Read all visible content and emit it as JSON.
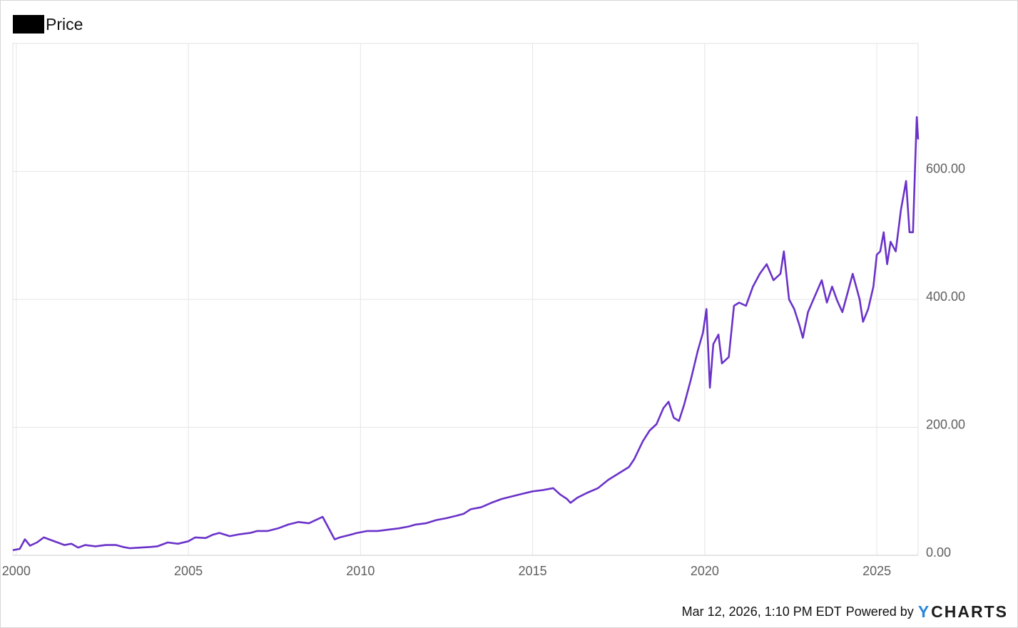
{
  "legend": {
    "label": "Price",
    "swatch_color": "#000000"
  },
  "footer": {
    "timestamp": "Mar 12, 2026, 1:10 PM EDT",
    "powered_by": "Powered by",
    "brand_mark": "Y",
    "brand_rest": "CHARTS",
    "brand_mark_color": "#2a86d8"
  },
  "chart_data": {
    "type": "line",
    "title": "",
    "xlabel": "",
    "ylabel": "",
    "x_ticks": [
      2000,
      2005,
      2010,
      2015,
      2020,
      2025
    ],
    "y_ticks": [
      0,
      200,
      400,
      600
    ],
    "y_tick_labels": [
      "0.00",
      "200.00",
      "400.00",
      "600.00"
    ],
    "xlim": [
      1999.9,
      2026.2
    ],
    "ylim": [
      0,
      800
    ],
    "grid": true,
    "legend_position": "top-left",
    "y_axis_side": "right",
    "series": [
      {
        "name": "Price",
        "color": "#6a32c9",
        "points": [
          [
            1999.9,
            8
          ],
          [
            2000.1,
            10
          ],
          [
            2000.25,
            25
          ],
          [
            2000.4,
            15
          ],
          [
            2000.6,
            20
          ],
          [
            2000.8,
            28
          ],
          [
            2001.0,
            24
          ],
          [
            2001.2,
            20
          ],
          [
            2001.4,
            16
          ],
          [
            2001.6,
            18
          ],
          [
            2001.8,
            12
          ],
          [
            2002.0,
            16
          ],
          [
            2002.3,
            14
          ],
          [
            2002.6,
            16
          ],
          [
            2002.9,
            16
          ],
          [
            2003.1,
            13
          ],
          [
            2003.3,
            11
          ],
          [
            2003.6,
            12
          ],
          [
            2003.9,
            13
          ],
          [
            2004.1,
            14
          ],
          [
            2004.4,
            20
          ],
          [
            2004.7,
            18
          ],
          [
            2005.0,
            22
          ],
          [
            2005.2,
            28
          ],
          [
            2005.5,
            27
          ],
          [
            2005.7,
            32
          ],
          [
            2005.9,
            35
          ],
          [
            2006.2,
            30
          ],
          [
            2006.5,
            33
          ],
          [
            2006.8,
            35
          ],
          [
            2007.0,
            38
          ],
          [
            2007.3,
            38
          ],
          [
            2007.6,
            42
          ],
          [
            2007.9,
            48
          ],
          [
            2008.2,
            52
          ],
          [
            2008.5,
            50
          ],
          [
            2008.7,
            55
          ],
          [
            2008.9,
            60
          ],
          [
            2009.1,
            40
          ],
          [
            2009.25,
            25
          ],
          [
            2009.4,
            28
          ],
          [
            2009.7,
            32
          ],
          [
            2009.9,
            35
          ],
          [
            2010.2,
            38
          ],
          [
            2010.5,
            38
          ],
          [
            2010.8,
            40
          ],
          [
            2011.1,
            42
          ],
          [
            2011.4,
            45
          ],
          [
            2011.6,
            48
          ],
          [
            2011.9,
            50
          ],
          [
            2012.2,
            55
          ],
          [
            2012.5,
            58
          ],
          [
            2012.8,
            62
          ],
          [
            2013.0,
            65
          ],
          [
            2013.2,
            72
          ],
          [
            2013.5,
            75
          ],
          [
            2013.8,
            82
          ],
          [
            2014.1,
            88
          ],
          [
            2014.4,
            92
          ],
          [
            2014.7,
            96
          ],
          [
            2015.0,
            100
          ],
          [
            2015.3,
            102
          ],
          [
            2015.6,
            105
          ],
          [
            2015.8,
            95
          ],
          [
            2016.0,
            88
          ],
          [
            2016.1,
            82
          ],
          [
            2016.3,
            90
          ],
          [
            2016.6,
            98
          ],
          [
            2016.9,
            105
          ],
          [
            2017.2,
            118
          ],
          [
            2017.5,
            128
          ],
          [
            2017.8,
            138
          ],
          [
            2017.95,
            150
          ],
          [
            2018.2,
            178
          ],
          [
            2018.4,
            195
          ],
          [
            2018.6,
            205
          ],
          [
            2018.8,
            230
          ],
          [
            2018.95,
            240
          ],
          [
            2019.1,
            215
          ],
          [
            2019.25,
            210
          ],
          [
            2019.4,
            235
          ],
          [
            2019.6,
            275
          ],
          [
            2019.8,
            320
          ],
          [
            2019.95,
            348
          ],
          [
            2020.05,
            385
          ],
          [
            2020.15,
            262
          ],
          [
            2020.25,
            330
          ],
          [
            2020.4,
            345
          ],
          [
            2020.5,
            300
          ],
          [
            2020.7,
            310
          ],
          [
            2020.85,
            390
          ],
          [
            2021.0,
            395
          ],
          [
            2021.2,
            390
          ],
          [
            2021.4,
            420
          ],
          [
            2021.6,
            440
          ],
          [
            2021.8,
            455
          ],
          [
            2022.0,
            430
          ],
          [
            2022.2,
            440
          ],
          [
            2022.3,
            475
          ],
          [
            2022.45,
            400
          ],
          [
            2022.6,
            385
          ],
          [
            2022.75,
            360
          ],
          [
            2022.85,
            340
          ],
          [
            2023.0,
            380
          ],
          [
            2023.2,
            405
          ],
          [
            2023.4,
            430
          ],
          [
            2023.55,
            395
          ],
          [
            2023.7,
            420
          ],
          [
            2023.85,
            398
          ],
          [
            2024.0,
            380
          ],
          [
            2024.15,
            410
          ],
          [
            2024.3,
            440
          ],
          [
            2024.5,
            400
          ],
          [
            2024.6,
            365
          ],
          [
            2024.75,
            385
          ],
          [
            2024.9,
            420
          ],
          [
            2025.0,
            470
          ],
          [
            2025.1,
            475
          ],
          [
            2025.2,
            505
          ],
          [
            2025.3,
            455
          ],
          [
            2025.4,
            490
          ],
          [
            2025.55,
            475
          ],
          [
            2025.7,
            540
          ],
          [
            2025.85,
            585
          ],
          [
            2025.95,
            505
          ],
          [
            2026.05,
            505
          ],
          [
            2026.12,
            620
          ],
          [
            2026.16,
            685
          ],
          [
            2026.2,
            650
          ]
        ]
      }
    ]
  }
}
